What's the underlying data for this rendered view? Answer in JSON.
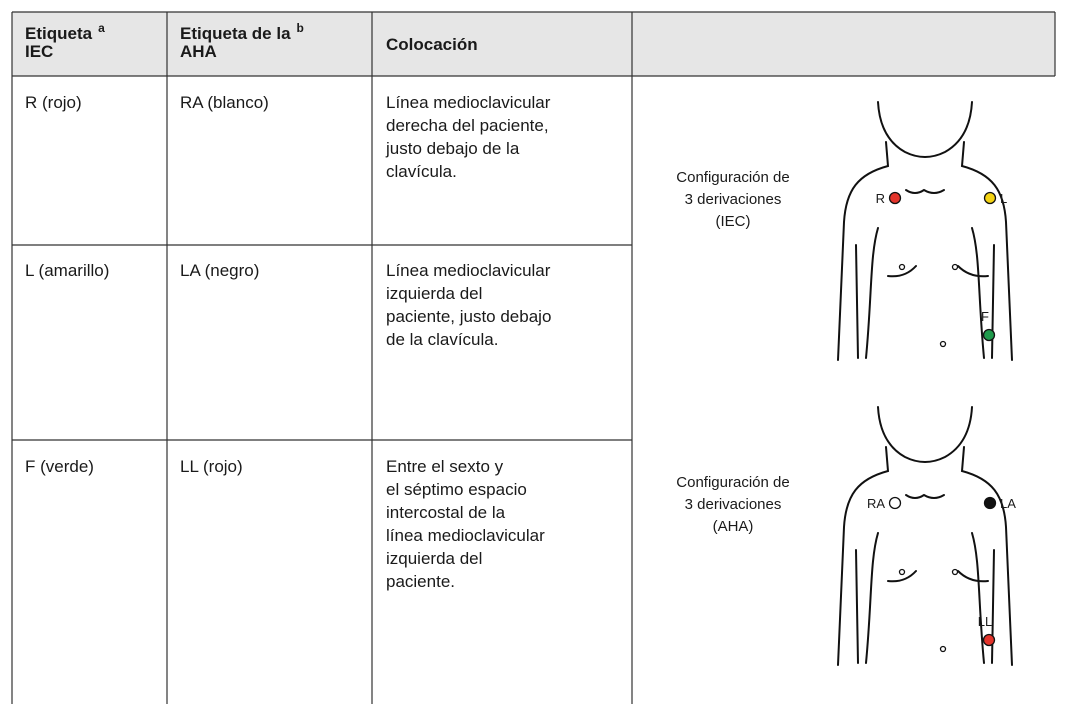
{
  "table": {
    "header": [
      {
        "lines": [
          "Etiqueta",
          "IEC"
        ],
        "note": "a"
      },
      {
        "lines": [
          "Etiqueta de la",
          "AHA"
        ],
        "note": "b"
      },
      {
        "lines": [
          "Colocación"
        ]
      }
    ],
    "rows": [
      [
        "R (rojo)",
        "RA (blanco)",
        [
          "Línea medioclavicular",
          "derecha del paciente,",
          "justo debajo de la",
          "clavícula."
        ]
      ],
      [
        "L (amarillo)",
        "LA (negro)",
        [
          "Línea medioclavicular",
          "izquierda del",
          "paciente, justo debajo",
          "de la clavícula."
        ]
      ],
      [
        "F (verde)",
        "LL (rojo)",
        [
          "Entre el sexto y",
          "el séptimo espacio",
          "intercostal de la",
          "línea medioclavicular",
          "izquierda del",
          "paciente."
        ]
      ]
    ]
  },
  "figures": [
    {
      "caption": [
        "Configuración de",
        "3 derivaciones",
        "(IEC)"
      ],
      "electrodes": [
        {
          "label": "R",
          "color": "#e3342b"
        },
        {
          "label": "L",
          "color": "#f4d313"
        },
        {
          "label": "F",
          "color": "#1f9a4c"
        }
      ]
    },
    {
      "caption": [
        "Configuración de",
        "3 derivaciones",
        "(AHA)"
      ],
      "electrodes": [
        {
          "label": "RA",
          "color": "#ffffff"
        },
        {
          "label": "LA",
          "color": "#111111"
        },
        {
          "label": "LL",
          "color": "#e3342b"
        }
      ]
    }
  ]
}
